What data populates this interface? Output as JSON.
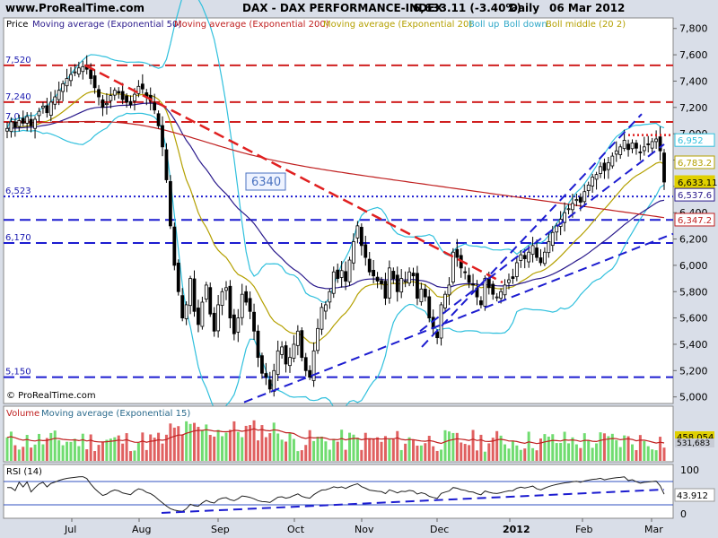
{
  "header": {
    "site": "www.ProRealTime.com",
    "title": "DAX - DAX PERFORMANCE-INDEX",
    "quote": "6,633.11 (-3.40%)",
    "period": "Daily",
    "date": "06 Mar 2012"
  },
  "legend": {
    "price": "Price",
    "ema50": "Moving average (Exponential 50)",
    "ema200": "Moving average (Exponential 200)",
    "ema20": "Moving average (Exponential 20)",
    "bolup": "Boll up",
    "boldown": "Boll down",
    "bolmid": "Boll middle (20 2)"
  },
  "watermark": "© ProRealTime.com",
  "price_box_label": "6340",
  "volume_panel": {
    "label": "Volume",
    "ma_label": "Moving average (Exponential 15)",
    "value_box": "458,054",
    "value_box2": "531,683"
  },
  "rsi_panel": {
    "label": "RSI (14)",
    "value_box": "43.912",
    "top": "100",
    "bottom": "0"
  },
  "colors": {
    "bg": "#d9dee8",
    "panel": "#ffffff",
    "ema50": "#2a1a8c",
    "ema200": "#c02020",
    "ema20": "#b4a000",
    "boll": "#30c0dd",
    "blue_lines": "#1c1cd0",
    "red_trend": "#e02020",
    "vol_up": "#70dc70",
    "vol_down": "#e06060",
    "vol_ma": "#c02020",
    "rsi": "#202020"
  },
  "chart_data": {
    "type": "candlestick",
    "y_ticks": [
      "7,800",
      "7,600",
      "7,400",
      "7,200",
      "7,000",
      "6,800",
      "6,600",
      "6,400",
      "6,200",
      "6,000",
      "5,800",
      "5,600",
      "5,400",
      "5,200",
      "5,000"
    ],
    "x_ticks": [
      "Jul",
      "Aug",
      "Sep",
      "Oct",
      "Nov",
      "Dec",
      "2012",
      "Feb",
      "Mar"
    ],
    "ylim": [
      4950,
      7880
    ],
    "levels": [
      {
        "label": "7,520",
        "value": 7520,
        "color": "#d02020",
        "style": "dash"
      },
      {
        "label": "7,240",
        "value": 7240,
        "color": "#d02020",
        "style": "dash"
      },
      {
        "label": "7,0",
        "value": 7090,
        "color": "#d02020",
        "style": "dash"
      },
      {
        "label": "6,523",
        "value": 6523,
        "color": "#1c1cd0",
        "style": "dot"
      },
      {
        "label": "",
        "value": 6345,
        "color": "#1c1cd0",
        "style": "dash"
      },
      {
        "label": "6,170",
        "value": 6170,
        "color": "#1c1cd0",
        "style": "dash"
      },
      {
        "label": "5,150",
        "value": 5150,
        "color": "#1c1cd0",
        "style": "dash"
      }
    ],
    "value_boxes": [
      {
        "label": "6,952",
        "value": 6952,
        "color": "#30c0dd"
      },
      {
        "label": "6,783.2",
        "value": 6783,
        "color": "#b4a000"
      },
      {
        "label": "6,633.11",
        "value": 6633,
        "color": "#e0d000"
      },
      {
        "label": "6,537.6",
        "value": 6537,
        "color": "#2a1a8c"
      },
      {
        "label": "6,347.2",
        "value": 6347,
        "color": "#c02020"
      }
    ],
    "close_series": [
      7040,
      7090,
      7050,
      7100,
      7080,
      7130,
      7060,
      7110,
      7170,
      7210,
      7160,
      7240,
      7280,
      7330,
      7380,
      7420,
      7450,
      7470,
      7500,
      7510,
      7490,
      7420,
      7350,
      7280,
      7200,
      7230,
      7290,
      7330,
      7310,
      7260,
      7240,
      7220,
      7300,
      7360,
      7340,
      7280,
      7250,
      7180,
      7060,
      6900,
      6650,
      6300,
      6000,
      5800,
      5600,
      5700,
      5900,
      5650,
      5550,
      5720,
      5850,
      5630,
      5500,
      5700,
      5800,
      5830,
      5600,
      5480,
      5600,
      5780,
      5720,
      5650,
      5500,
      5300,
      5180,
      5150,
      5060,
      5200,
      5350,
      5380,
      5250,
      5300,
      5400,
      5500,
      5300,
      5200,
      5150,
      5350,
      5520,
      5680,
      5700,
      5800,
      5950,
      5900,
      5960,
      5880,
      6040,
      6180,
      6300,
      6150,
      6060,
      5950,
      5920,
      5880,
      5860,
      5750,
      5980,
      5900,
      5800,
      5900,
      5880,
      5950,
      5920,
      5750,
      5820,
      5760,
      5600,
      5520,
      5450,
      5700,
      5780,
      5850,
      6100,
      6060,
      5980,
      5950,
      5870,
      5850,
      5760,
      5700,
      5900,
      5830,
      5780,
      5760,
      5800,
      5850,
      5890,
      5900,
      6020,
      6080,
      6050,
      6100,
      6150,
      6060,
      6020,
      6100,
      6180,
      6250,
      6300,
      6350,
      6400,
      6430,
      6470,
      6500,
      6480,
      6560,
      6610,
      6670,
      6690,
      6750,
      6720,
      6780,
      6830,
      6870,
      6900,
      6950,
      6880,
      6930,
      6890,
      6860,
      6900,
      6920,
      6940,
      6960,
      6870,
      6633
    ],
    "volume_note": "daily volume with EMA(15)",
    "rsi_range": [
      0,
      100
    ]
  }
}
